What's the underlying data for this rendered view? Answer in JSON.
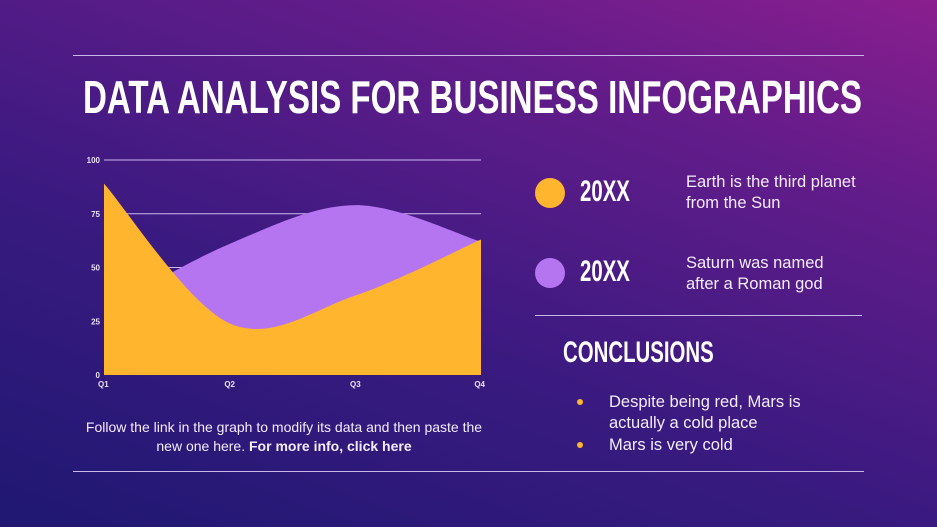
{
  "title": "DATA ANALYSIS FOR BUSINESS INFOGRAPHICS",
  "chart_data": {
    "type": "area",
    "categories": [
      "Q1",
      "Q2",
      "Q3",
      "Q4"
    ],
    "yticks": [
      "0",
      "25",
      "50",
      "75",
      "100"
    ],
    "ylim": [
      0,
      100
    ],
    "grid": true,
    "series": [
      {
        "name": "20XX",
        "color": "#b574f0",
        "values": [
          30,
          61,
          79,
          62
        ]
      },
      {
        "name": "20XX",
        "color": "#ffb52e",
        "values": [
          89,
          24,
          37,
          63
        ]
      }
    ]
  },
  "caption": {
    "text": "Follow the link in the graph to modify its data and then paste the new one here. ",
    "link": "For more info, click here"
  },
  "legend": [
    {
      "label": "20XX",
      "color": "#ffb52e",
      "description": "Earth is the third planet from the Sun"
    },
    {
      "label": "20XX",
      "color": "#b574f0",
      "description": "Saturn was named after a Roman god"
    }
  ],
  "conclusions": {
    "heading": "CONCLUSIONS",
    "bullets": [
      "Despite being red, Mars is actually a cold place",
      "Mars is very cold"
    ]
  }
}
